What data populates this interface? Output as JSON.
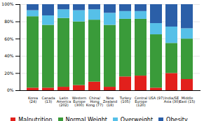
{
  "chart_data": {
    "type": "bar",
    "stacked": true,
    "categories": [
      "Korea\n(24)",
      "Canada\n(13)",
      "Latin\nAmerica\n(202)",
      "Western\nEurope\n(300)",
      "China/\nHong\nKong (77)",
      "New\nZealand\n(18)",
      "Turkey\n(105)",
      "Central\nEurope\n(120)",
      "USA (97)",
      "India/SE\nAsia (30)",
      "Middle\nEast (15)"
    ],
    "series": [
      {
        "name": "Malnutrition",
        "color": "#e2201c",
        "values": [
          3,
          3,
          4,
          6,
          10,
          4,
          16,
          17,
          3,
          20,
          13
        ]
      },
      {
        "name": "Normal Weight",
        "color": "#3a9b3a",
        "values": [
          83,
          73,
          80,
          74,
          72,
          72,
          67,
          66,
          62,
          35,
          47
        ]
      },
      {
        "name": "Overweight",
        "color": "#56c0e8",
        "values": [
          7,
          11,
          10,
          13,
          12,
          14,
          9,
          9,
          13,
          19,
          12
        ]
      },
      {
        "name": "Obesity",
        "color": "#2b5fa8",
        "values": [
          7,
          13,
          6,
          7,
          6,
          10,
          8,
          8,
          22,
          26,
          28
        ]
      }
    ],
    "ylim": [
      0,
      100
    ],
    "yticks": [
      {
        "value": 0,
        "label": "0%"
      },
      {
        "value": 20,
        "label": "20%"
      },
      {
        "value": 40,
        "label": "40%"
      },
      {
        "value": 60,
        "label": "60%"
      },
      {
        "value": 80,
        "label": "80%"
      },
      {
        "value": 100,
        "label": "100%"
      }
    ],
    "grid": true,
    "legend": "bottom"
  }
}
